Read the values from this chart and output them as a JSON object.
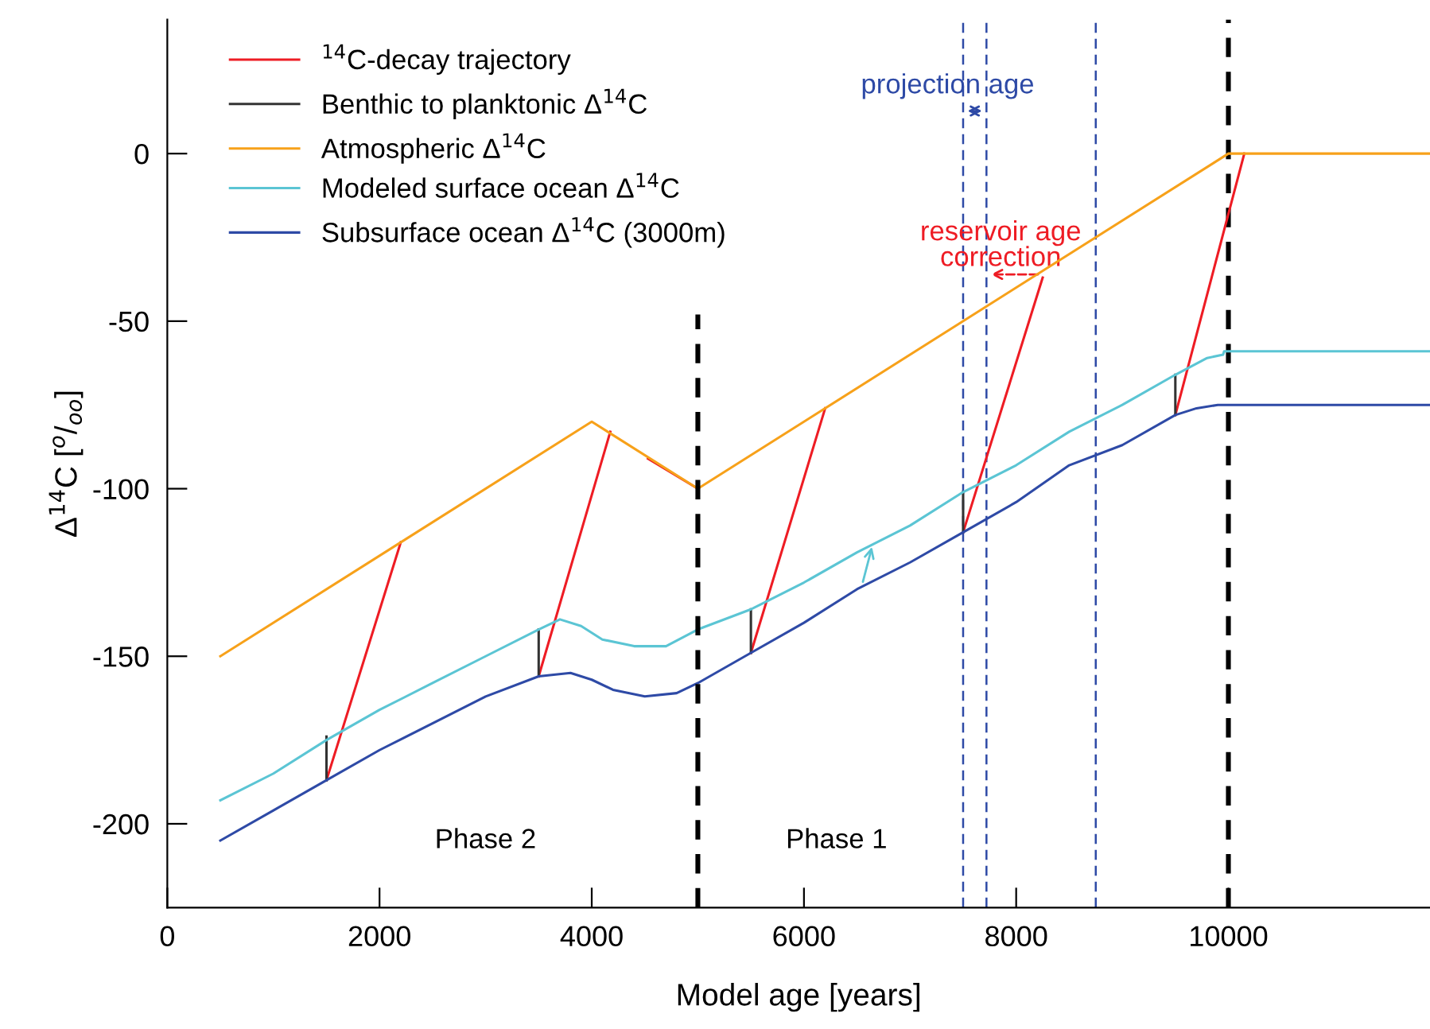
{
  "chart_data": {
    "type": "line",
    "xlabel": "Model age [years]",
    "ylabel": "Δ$^{14}$C [$^{o}$/$_{oo}$]",
    "xlim": [
      0,
      11900
    ],
    "ylim": [
      -225,
      40
    ],
    "xticks": [
      0,
      2000,
      4000,
      6000,
      8000,
      10000
    ],
    "yticks": [
      -200,
      -150,
      -100,
      -50,
      0
    ],
    "grid": false,
    "legend": "top left",
    "marker": "none",
    "line_style": "solid",
    "series": [
      {
        "name": "$^{14}$C-decay trajectory",
        "color": "#ee1c24",
        "x": [
          1500,
          2200,
          null,
          3500,
          4175,
          null,
          4530,
          5000,
          null,
          5500,
          6200,
          null,
          7500,
          8250,
          null,
          9500,
          10150
        ],
        "values": [
          -187,
          -116,
          null,
          -156,
          -83,
          null,
          -91,
          -100,
          null,
          -149,
          -76,
          null,
          -113,
          -37,
          null,
          -78,
          0
        ]
      },
      {
        "name": "Benthic to planktonic Δ$^{14}$C",
        "color": "#333333",
        "x": [
          1500,
          1500,
          null,
          3500,
          3500,
          null,
          5500,
          5500,
          null,
          7500,
          7500,
          null,
          9500,
          9500
        ],
        "values": [
          -187,
          -174,
          null,
          -156,
          -142,
          null,
          -149,
          -136,
          null,
          -113,
          -101,
          null,
          -78,
          -66
        ]
      },
      {
        "name": "Atmospheric Δ$^{14}$C",
        "color": "#f7a11a",
        "x": [
          500,
          4000,
          5000,
          10000,
          11900
        ],
        "values": [
          -150,
          -80,
          -100,
          0,
          0
        ]
      },
      {
        "name": "Modeled surface ocean Δ$^{14}$C",
        "color": "#5bc5d4",
        "x": [
          500,
          1000,
          1500,
          2000,
          2500,
          3000,
          3500,
          3700,
          3900,
          4100,
          4400,
          4700,
          5000,
          5500,
          6000,
          6500,
          7000,
          7500,
          8000,
          8500,
          9000,
          9500,
          9800,
          9950,
          9960,
          11900
        ],
        "values": [
          -193,
          -185,
          -175,
          -166,
          -158,
          -150,
          -142,
          -139,
          -141,
          -145,
          -147,
          -147,
          -142,
          -136,
          -128,
          -119,
          -111,
          -101,
          -93,
          -83,
          -75,
          -66,
          -61,
          -60,
          -59,
          -59
        ]
      },
      {
        "name": "Subsurface ocean Δ$^{14}$C (3000m)",
        "color": "#2e4aa6",
        "x": [
          500,
          1000,
          1500,
          2000,
          2500,
          3000,
          3500,
          3800,
          4000,
          4200,
          4500,
          4800,
          5000,
          5500,
          6000,
          6500,
          7000,
          7500,
          8000,
          8500,
          9000,
          9500,
          9700,
          9900,
          11900
        ],
        "values": [
          -205,
          -196,
          -187,
          -178,
          -170,
          -162,
          -156,
          -155,
          -157,
          -160,
          -162,
          -161,
          -158,
          -149,
          -140,
          -130,
          -122,
          -113,
          -104,
          -93,
          -87,
          -78,
          -76,
          -75,
          -75
        ]
      },
      {
        "color": "#000000",
        "line_style": "dashed",
        "x": [
          5000,
          5000
        ],
        "values": [
          -225,
          -48
        ]
      }
    ],
    "ref_lines": [
      {
        "axis": "x",
        "value": 10000,
        "color": "#000000",
        "line_style": "dashed"
      },
      {
        "axis": "x",
        "value": 7500,
        "color": "#2e4aa6",
        "line_style": "dashed"
      },
      {
        "axis": "x",
        "value": 7720,
        "color": "#2e4aa6",
        "line_style": "dashed"
      },
      {
        "axis": "x",
        "value": 8750,
        "color": "#2e4aa6",
        "line_style": "dashed"
      }
    ],
    "annotations": [
      "Phase 2",
      "Phase 1",
      "projection age",
      "reservoir age\ncorrection"
    ]
  }
}
